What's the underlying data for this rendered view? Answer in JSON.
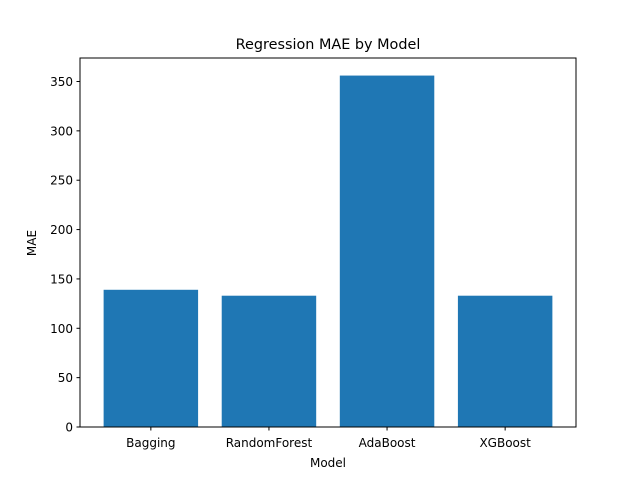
{
  "chart_data": {
    "type": "bar",
    "title": "Regression MAE by Model",
    "xlabel": "Model",
    "ylabel": "MAE",
    "categories": [
      "Bagging",
      "RandomForest",
      "AdaBoost",
      "XGBoost"
    ],
    "values": [
      139,
      133,
      356,
      133
    ],
    "ylim": [
      0,
      373.8
    ],
    "yticks": [
      0,
      50,
      100,
      150,
      200,
      250,
      300,
      350
    ],
    "grid": false,
    "bar_color": "#1f77b4"
  }
}
